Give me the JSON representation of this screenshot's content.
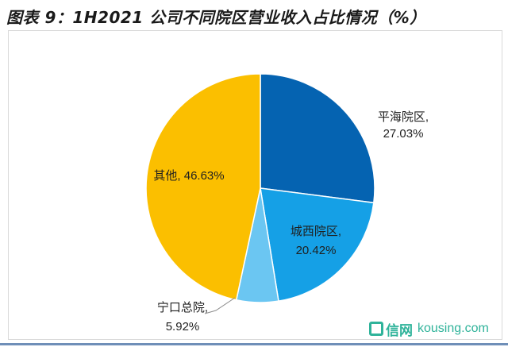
{
  "figure": {
    "title": "图表 9：1H2021 公司不同院区营业收入占比情况（%）"
  },
  "chart_data": {
    "type": "pie",
    "title": "图表 9：1H2021 公司不同院区营业收入占比情况（%）",
    "slices": [
      {
        "name": "平海院区",
        "value": 27.03,
        "label_line1": "平海院区,",
        "label_line2": "27.03%",
        "color": "#0563b1"
      },
      {
        "name": "城西院区",
        "value": 20.42,
        "label_line1": "城西院区,",
        "label_line2": "20.42%",
        "color": "#15a0e6"
      },
      {
        "name": "宁口总院",
        "value": 5.92,
        "label_line1": "宁口总院,",
        "label_line2": "5.92%",
        "color": "#6bc6f2"
      },
      {
        "name": "其他",
        "value": 46.63,
        "label_line1": "其他, 46.63%",
        "label_line2": "",
        "color": "#fbbf00"
      }
    ],
    "start_angle_deg": 0,
    "direction": "clockwise"
  },
  "watermark": {
    "brand_cn": "信网",
    "url": "kousing.com",
    "color": "#2fb39a"
  }
}
